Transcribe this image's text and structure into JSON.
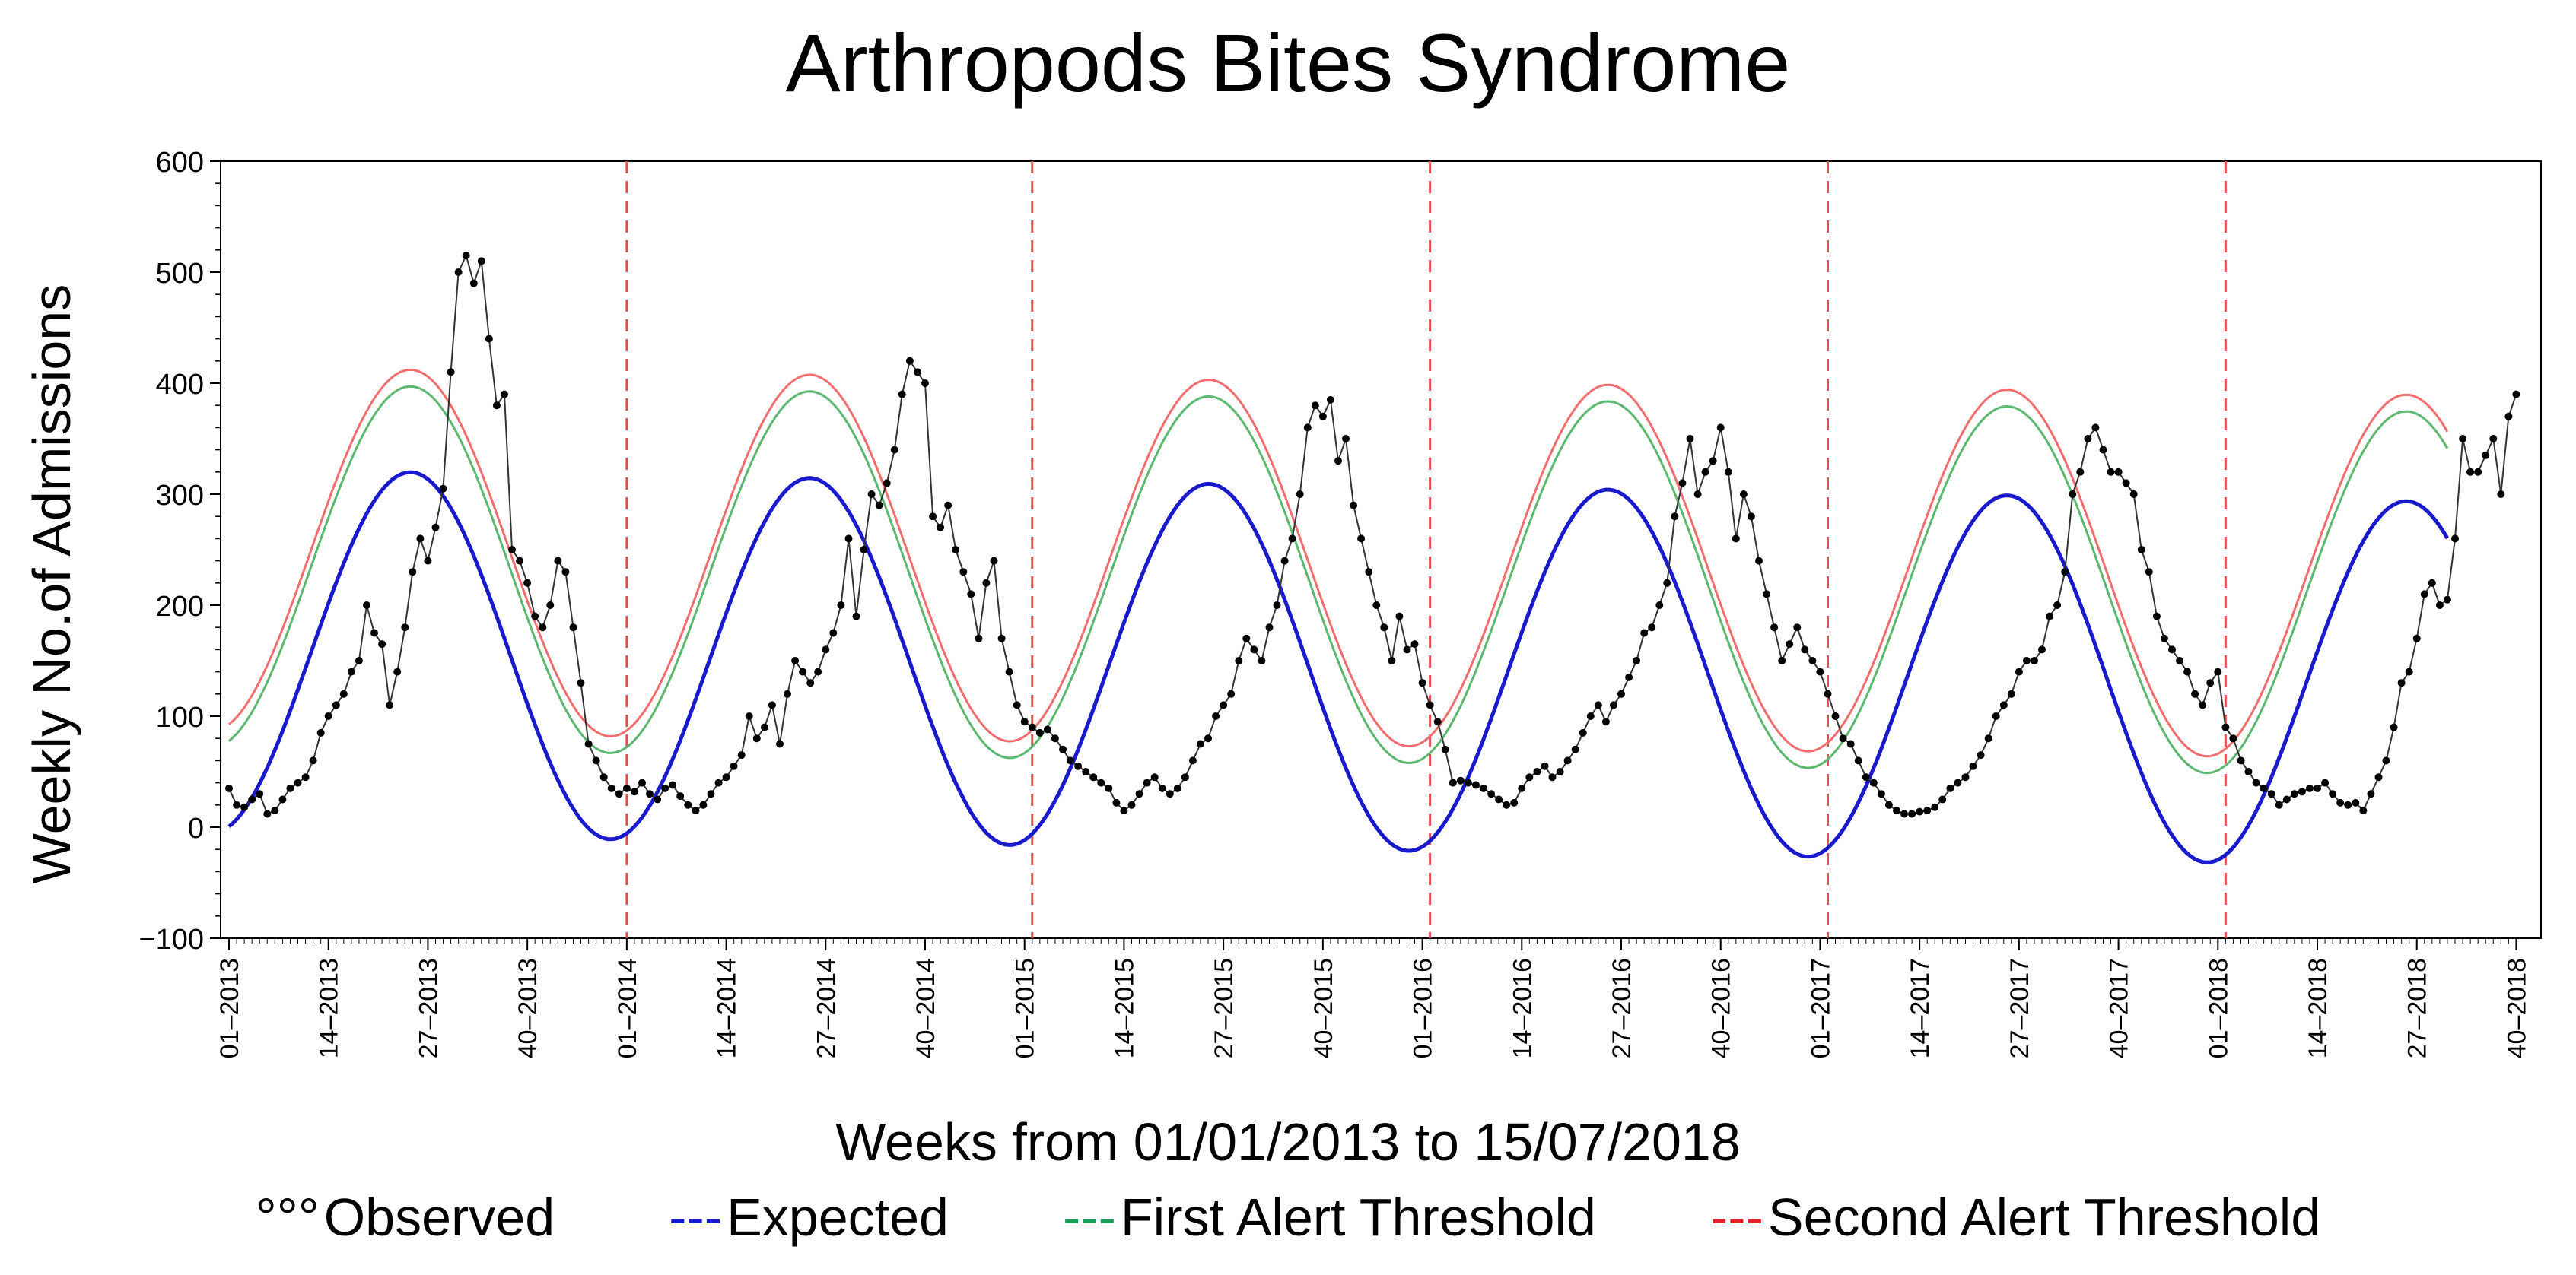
{
  "chart_data": {
    "type": "line",
    "title": "Arthropods Bites Syndrome",
    "xlabel": "Weeks from 01/01/2013 to 15/07/2018",
    "ylabel": "Weekly No.of Admissions",
    "ylim": [
      -100,
      600
    ],
    "yticks": [
      -100,
      0,
      100,
      200,
      300,
      400,
      500,
      600
    ],
    "ytick_labels": [
      "−100",
      "0",
      "100",
      "200",
      "300",
      "400",
      "500",
      "600"
    ],
    "xticks": [
      "01–2013",
      "14–2013",
      "27–2013",
      "40–2013",
      "01–2014",
      "14–2014",
      "27–2014",
      "40–2014",
      "01–2015",
      "14–2015",
      "27–2015",
      "40–2015",
      "01–2016",
      "14–2016",
      "27–2016",
      "40–2016",
      "01–2017",
      "14–2017",
      "27–2017",
      "40–2017",
      "01–2018",
      "14–2018",
      "27–2018",
      "40–2018"
    ],
    "year_start_markers": [
      "01–2014",
      "01–2015",
      "01–2016",
      "01–2017",
      "01–2018"
    ],
    "legend": [
      {
        "marker": "°°°",
        "label": " Observed",
        "color": "#000000"
      },
      {
        "marker": "---",
        "label": "Expected",
        "color": "#1a1acd"
      },
      {
        "marker": "---",
        "label": "First Alert Threshold",
        "color": "#1a9e5a"
      },
      {
        "marker": "---",
        "label": "Second Alert Threshold",
        "color": "#e0202a"
      }
    ],
    "colors": {
      "observed": "#000000",
      "expected": "#1a1acd",
      "first_alert": "#5cb870",
      "second_alert": "#f26d6d",
      "year_marker": "#e05050"
    },
    "series": [
      {
        "name": "Observed",
        "note": "weekly values, first point at week index 0 (01-2013), one value per week",
        "values": [
          35,
          20,
          18,
          25,
          30,
          12,
          15,
          25,
          35,
          40,
          45,
          60,
          85,
          100,
          110,
          120,
          140,
          150,
          200,
          175,
          165,
          110,
          140,
          180,
          230,
          260,
          240,
          270,
          305,
          410,
          500,
          515,
          490,
          510,
          440,
          380,
          390,
          250,
          240,
          220,
          190,
          180,
          200,
          240,
          230,
          180,
          130,
          75,
          60,
          45,
          35,
          30,
          35,
          32,
          40,
          30,
          25,
          35,
          38,
          28,
          20,
          15,
          20,
          30,
          40,
          45,
          55,
          65,
          100,
          80,
          90,
          110,
          75,
          120,
          150,
          140,
          130,
          140,
          160,
          175,
          200,
          260,
          190,
          250,
          300,
          290,
          310,
          340,
          390,
          420,
          410,
          400,
          280,
          270,
          290,
          250,
          230,
          210,
          170,
          220,
          240,
          170,
          140,
          110,
          95,
          90,
          85,
          88,
          80,
          70,
          60,
          55,
          50,
          45,
          40,
          35,
          22,
          15,
          20,
          30,
          40,
          45,
          35,
          30,
          35,
          45,
          60,
          75,
          80,
          100,
          110,
          120,
          150,
          170,
          160,
          150,
          180,
          200,
          240,
          260,
          300,
          360,
          380,
          370,
          385,
          330,
          350,
          290,
          260,
          230,
          200,
          180,
          150,
          190,
          160,
          165,
          130,
          110,
          95,
          70,
          40,
          42,
          40,
          38,
          35,
          30,
          25,
          20,
          22,
          35,
          45,
          50,
          55,
          45,
          50,
          60,
          70,
          85,
          100,
          110,
          95,
          110,
          120,
          135,
          150,
          175,
          180,
          200,
          220,
          280,
          310,
          350,
          300,
          320,
          330,
          360,
          320,
          260,
          300,
          280,
          240,
          210,
          180,
          150,
          165,
          180,
          160,
          150,
          140,
          120,
          100,
          80,
          75,
          60,
          45,
          40,
          30,
          20,
          15,
          12,
          12,
          14,
          15,
          18,
          25,
          35,
          40,
          45,
          55,
          65,
          80,
          100,
          110,
          120,
          140,
          150,
          150,
          160,
          190,
          200,
          230,
          300,
          320,
          350,
          360,
          340,
          320,
          320,
          310,
          300,
          250,
          230,
          190,
          170,
          160,
          150,
          140,
          120,
          110,
          130,
          140,
          90,
          80,
          60,
          50,
          40,
          35,
          30,
          20,
          25,
          30,
          32,
          35,
          35,
          40,
          30,
          22,
          20,
          22,
          15,
          30,
          45,
          60,
          90,
          130,
          140,
          170,
          210,
          220,
          200,
          205,
          260,
          350,
          320,
          320,
          335,
          350,
          300,
          370,
          390
        ]
      },
      {
        "name": "Expected",
        "note": "seasonal sinusoid: mean 158.14 - 0.1 per week, amplitude 164, period 52.18 weeks, peak near week 23.75, weeks 0 to 290",
        "mean_start": 158.14,
        "trend_per_week": -0.1,
        "amplitude": 164,
        "period_weeks": 52.18,
        "peak_week": 23.75,
        "weeks": [
          0,
          290
        ]
      },
      {
        "name": "First Alert Threshold",
        "note": "Expected + offset (offset 77 at start, 81 at end)",
        "offset_start": 77,
        "offset_end": 81,
        "weeks": [
          0,
          290
        ]
      },
      {
        "name": "Second Alert Threshold",
        "note": "Expected + offset (offset 92 at start, 96 at end)",
        "offset_start": 92,
        "offset_end": 96,
        "weeks": [
          0,
          290
        ]
      }
    ]
  }
}
